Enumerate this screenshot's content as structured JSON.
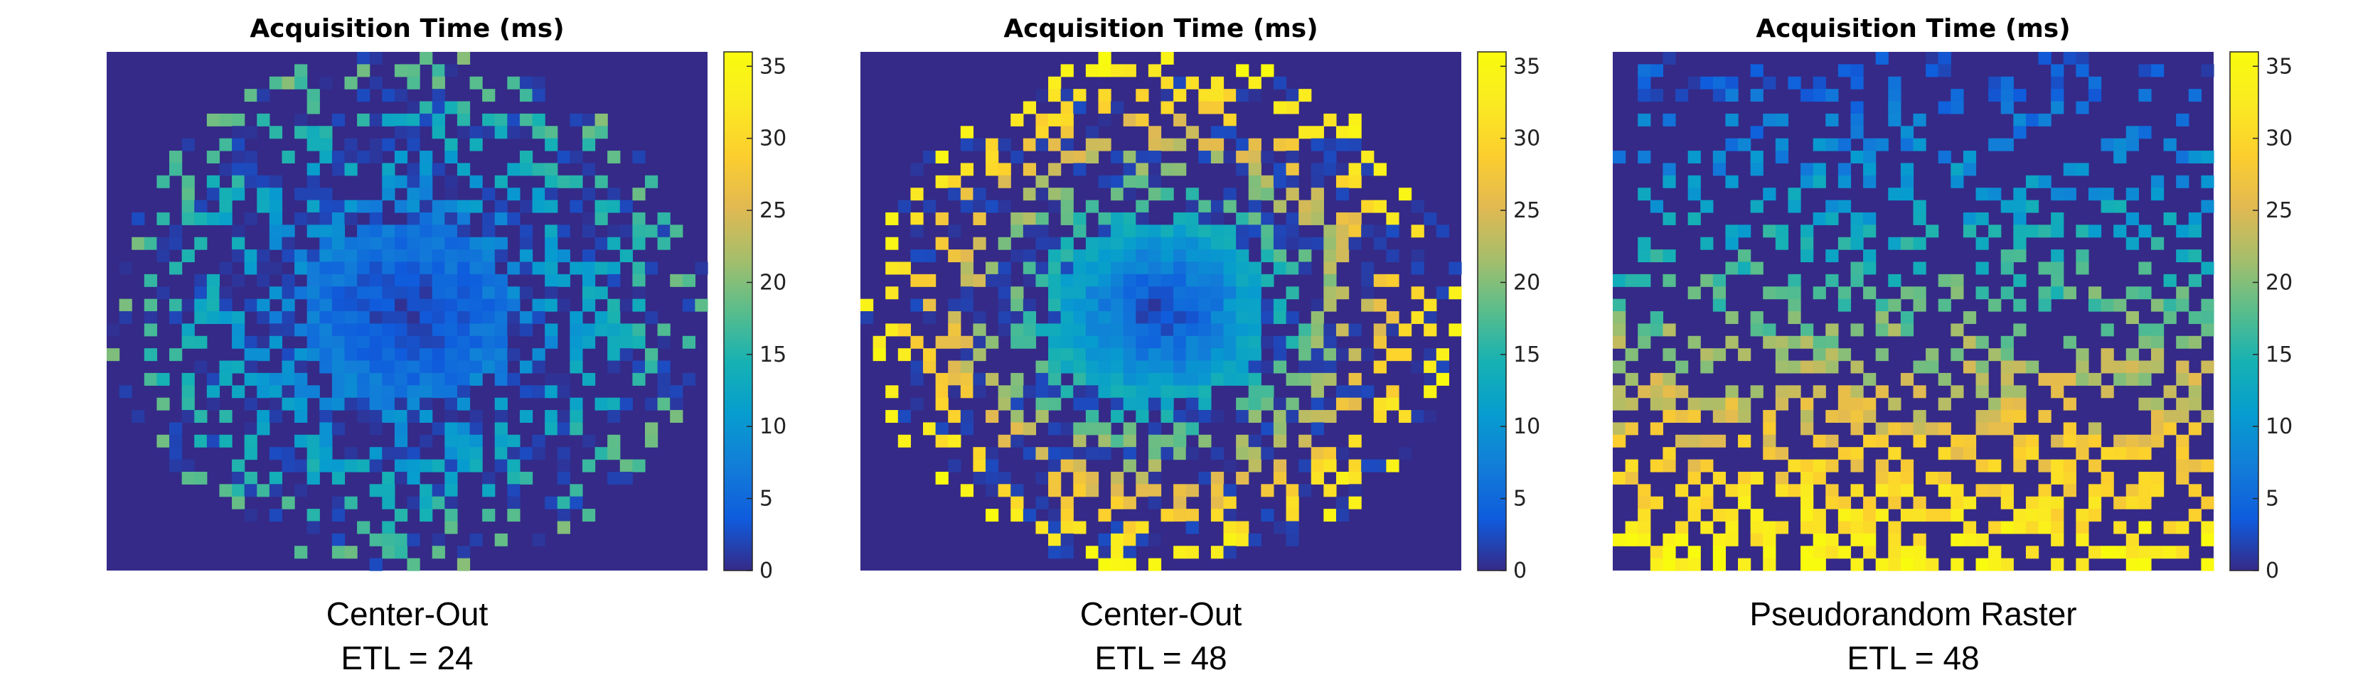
{
  "colors": {
    "background_value": "#352a87",
    "axis": "#262626"
  },
  "colormap": "parula",
  "chart_data": [
    {
      "type": "heatmap",
      "title": "Acquisition Time (ms)",
      "caption": [
        "Center-Out",
        "ETL = 24"
      ],
      "pattern": "center-out",
      "etl": 24,
      "grid": [
        48,
        42
      ],
      "colorbar": {
        "range": [
          0,
          36
        ],
        "ticks": [
          "0",
          "5",
          "10",
          "15",
          "20",
          "25",
          "30",
          "35"
        ]
      },
      "value_range_ms": [
        0,
        19
      ],
      "mask": "elliptical",
      "description_values": {
        "center_ms": 1,
        "edge_ms": 18
      }
    },
    {
      "type": "heatmap",
      "title": "Acquisition Time (ms)",
      "caption": [
        "Center-Out",
        "ETL = 48"
      ],
      "pattern": "center-out",
      "etl": 48,
      "grid": [
        48,
        42
      ],
      "colorbar": {
        "range": [
          0,
          36
        ],
        "ticks": [
          "0",
          "5",
          "10",
          "15",
          "20",
          "25",
          "30",
          "35"
        ]
      },
      "value_range_ms": [
        0,
        36
      ],
      "mask": "elliptical",
      "description_values": {
        "center_ms": 1,
        "edge_ms": 35
      }
    },
    {
      "type": "heatmap",
      "title": "Acquisition Time (ms)",
      "caption": [
        "Pseudorandom Raster",
        "ETL = 48"
      ],
      "pattern": "raster",
      "etl": 48,
      "grid": [
        48,
        42
      ],
      "colorbar": {
        "range": [
          0,
          36
        ],
        "ticks": [
          "0",
          "5",
          "10",
          "15",
          "20",
          "25",
          "30",
          "35"
        ]
      },
      "value_range_ms": [
        0,
        36
      ],
      "mask": "full",
      "description_values": {
        "top_ms": 4,
        "bottom_ms": 35
      }
    }
  ]
}
